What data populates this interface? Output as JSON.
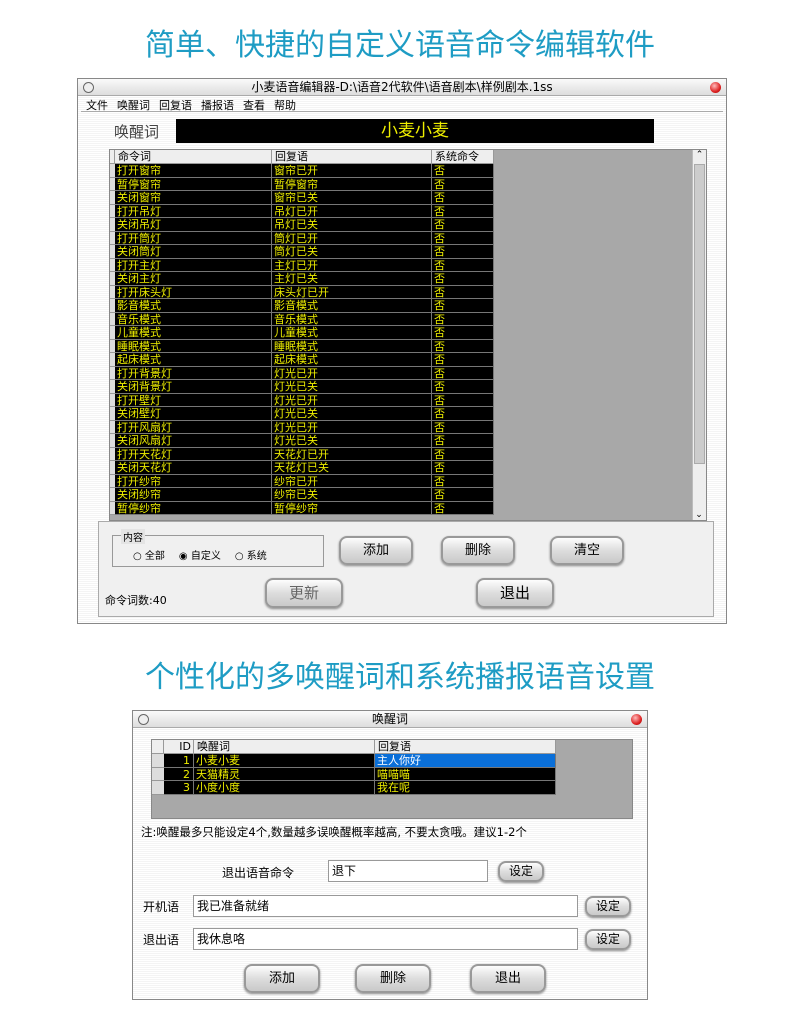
{
  "headline1": "简单、快捷的自定义语音命令编辑软件",
  "headline2": "个性化的多唤醒词和系统播报语音设置",
  "editor": {
    "title": "小麦语音编辑器-D:\\语音2代软件\\语音剧本\\样例剧本.1ss",
    "menu": [
      "文件",
      "唤醒词",
      "回复语",
      "播报语",
      "查看",
      "帮助"
    ],
    "wake_label": "唤醒词",
    "wake_value": "小麦小麦",
    "columns": [
      "命令词",
      "回复语",
      "系统命令"
    ],
    "rows": [
      [
        "打开窗帘",
        "窗帘已开",
        "否"
      ],
      [
        "暂停窗帘",
        "暂停窗帘",
        "否"
      ],
      [
        "关闭窗帘",
        "窗帘已关",
        "否"
      ],
      [
        "打开吊灯",
        "吊灯已开",
        "否"
      ],
      [
        "关闭吊灯",
        "吊灯已关",
        "否"
      ],
      [
        "打开筒灯",
        "筒灯已开",
        "否"
      ],
      [
        "关闭筒灯",
        "筒灯已关",
        "否"
      ],
      [
        "打开主灯",
        "主灯已开",
        "否"
      ],
      [
        "关闭主灯",
        "主灯已关",
        "否"
      ],
      [
        "打开床头灯",
        "床头灯已开",
        "否"
      ],
      [
        "影音模式",
        "影音模式",
        "否"
      ],
      [
        "音乐模式",
        "音乐模式",
        "否"
      ],
      [
        "儿童模式",
        "儿童模式",
        "否"
      ],
      [
        "睡眠模式",
        "睡眠模式",
        "否"
      ],
      [
        "起床模式",
        "起床模式",
        "否"
      ],
      [
        "打开背景灯",
        "灯光已开",
        "否"
      ],
      [
        "关闭背景灯",
        "灯光已关",
        "否"
      ],
      [
        "打开壁灯",
        "灯光已开",
        "否"
      ],
      [
        "关闭壁灯",
        "灯光已关",
        "否"
      ],
      [
        "打开风扇灯",
        "灯光已开",
        "否"
      ],
      [
        "关闭风扇灯",
        "灯光已关",
        "否"
      ],
      [
        "打开天花灯",
        "天花灯已开",
        "否"
      ],
      [
        "关闭天花灯",
        "天花灯已关",
        "否"
      ],
      [
        "打开纱帘",
        "纱帘已开",
        "否"
      ],
      [
        "关闭纱帘",
        "纱帘已关",
        "否"
      ],
      [
        "暂停纱帘",
        "暂停纱帘",
        "否"
      ]
    ],
    "group_label": "内容",
    "radios": [
      {
        "label": "全部",
        "checked": false
      },
      {
        "label": "自定义",
        "checked": true
      },
      {
        "label": "系统",
        "checked": false
      }
    ],
    "buttons": {
      "add": "添加",
      "delete": "删除",
      "clear": "清空",
      "update": "更新",
      "exit": "退出"
    },
    "count": "命令词数:40"
  },
  "wake_dialog": {
    "title": "唤醒词",
    "columns": [
      "ID",
      "唤醒词",
      "回复语"
    ],
    "rows": [
      [
        "1",
        "小麦小麦",
        "主人你好"
      ],
      [
        "2",
        "天猫精灵",
        "喵喵喵"
      ],
      [
        "3",
        "小度小度",
        "我在呢"
      ]
    ],
    "note": "注:唤醒最多只能设定4个,数量越多误唤醒概率越高, 不要太贪哦。建议1-2个",
    "exit_cmd_label": "退出语音命令",
    "exit_cmd_value": "退下",
    "boot_label": "开机语",
    "boot_value": "我已准备就绪",
    "quit_label": "退出语",
    "quit_value": "我休息咯",
    "set": "设定",
    "buttons": {
      "add": "添加",
      "delete": "删除",
      "exit": "退出"
    }
  },
  "colors": {
    "accent": "#1e9cc4",
    "cell_text": "#eeee00",
    "selected": "#0a6fd8"
  }
}
